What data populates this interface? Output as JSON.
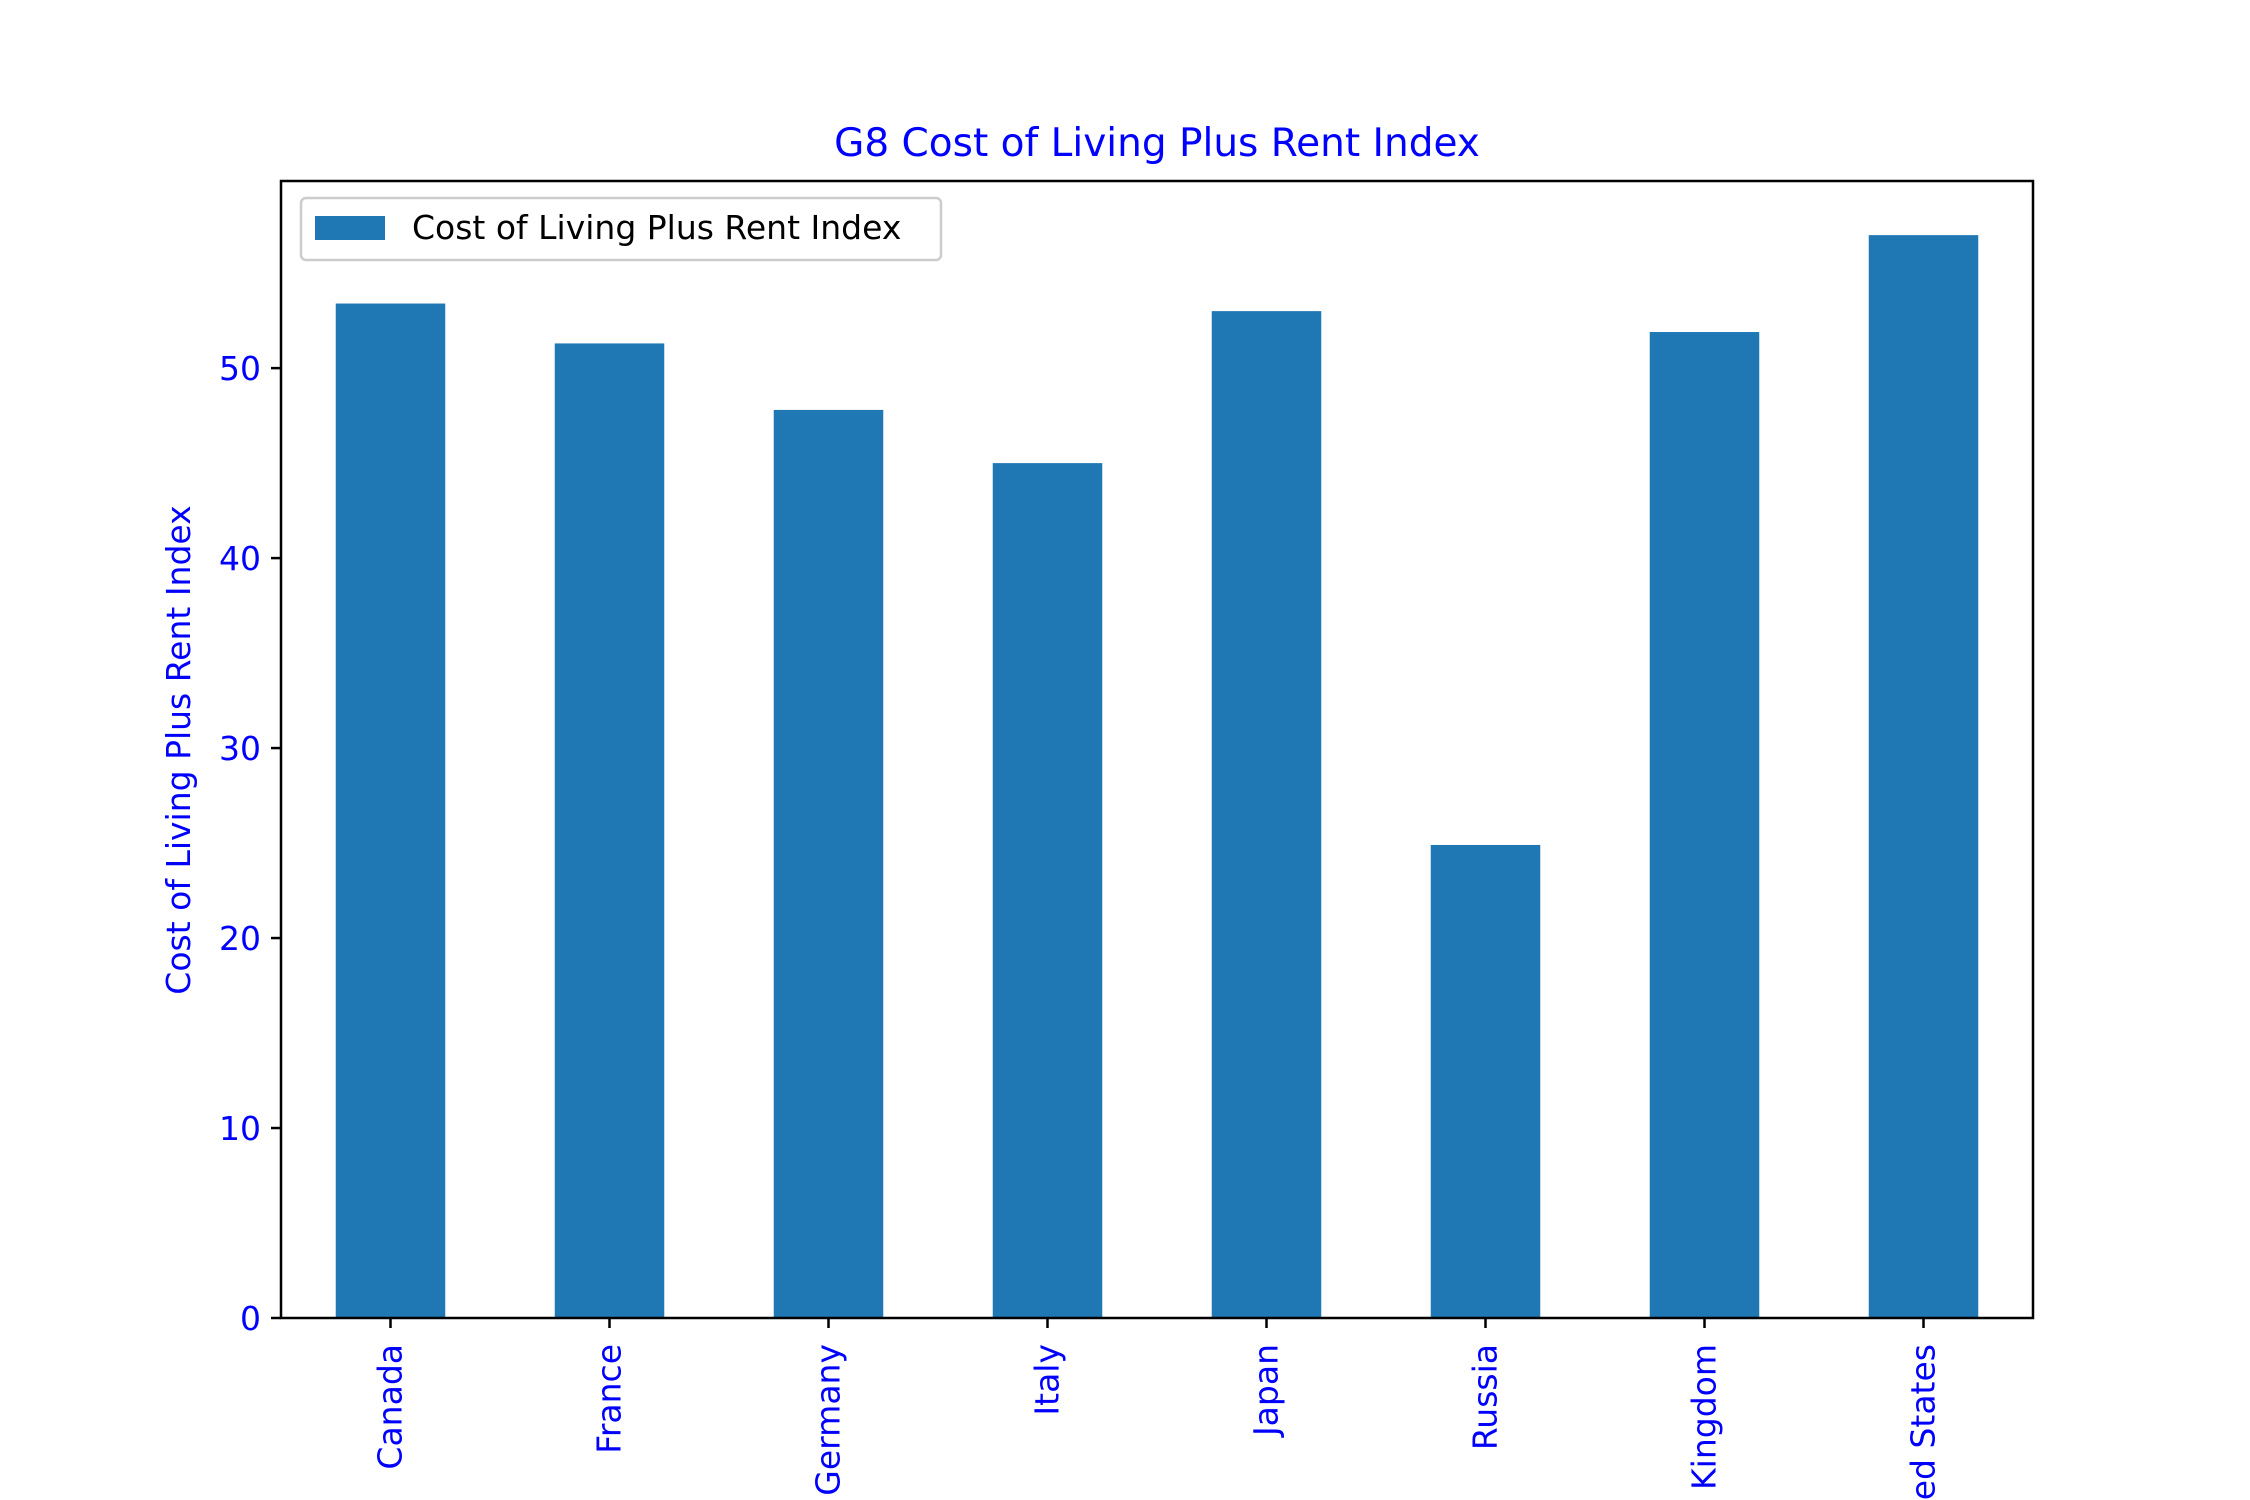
{
  "chart_data": {
    "type": "bar",
    "title": "G8 Cost of Living Plus Rent Index",
    "xlabel": "",
    "ylabel": "Cost of Living Plus Rent Index",
    "categories": [
      "Canada",
      "France",
      "Germany",
      "Italy",
      "Japan",
      "Russia",
      "Kingdom",
      "ed States"
    ],
    "series": [
      {
        "name": "Cost of Living Plus Rent Index",
        "values": [
          53.4,
          51.3,
          47.8,
          45.0,
          53.0,
          24.9,
          51.9,
          57.0
        ]
      }
    ],
    "ylim": [
      0,
      59.85
    ],
    "yticks": [
      "0",
      "10",
      "20",
      "30",
      "40",
      "50"
    ],
    "grid": false,
    "legend_position": "top-left",
    "colors": {
      "bar": "#1f77b4",
      "text": "#0000ff",
      "axis": "#000000"
    }
  }
}
